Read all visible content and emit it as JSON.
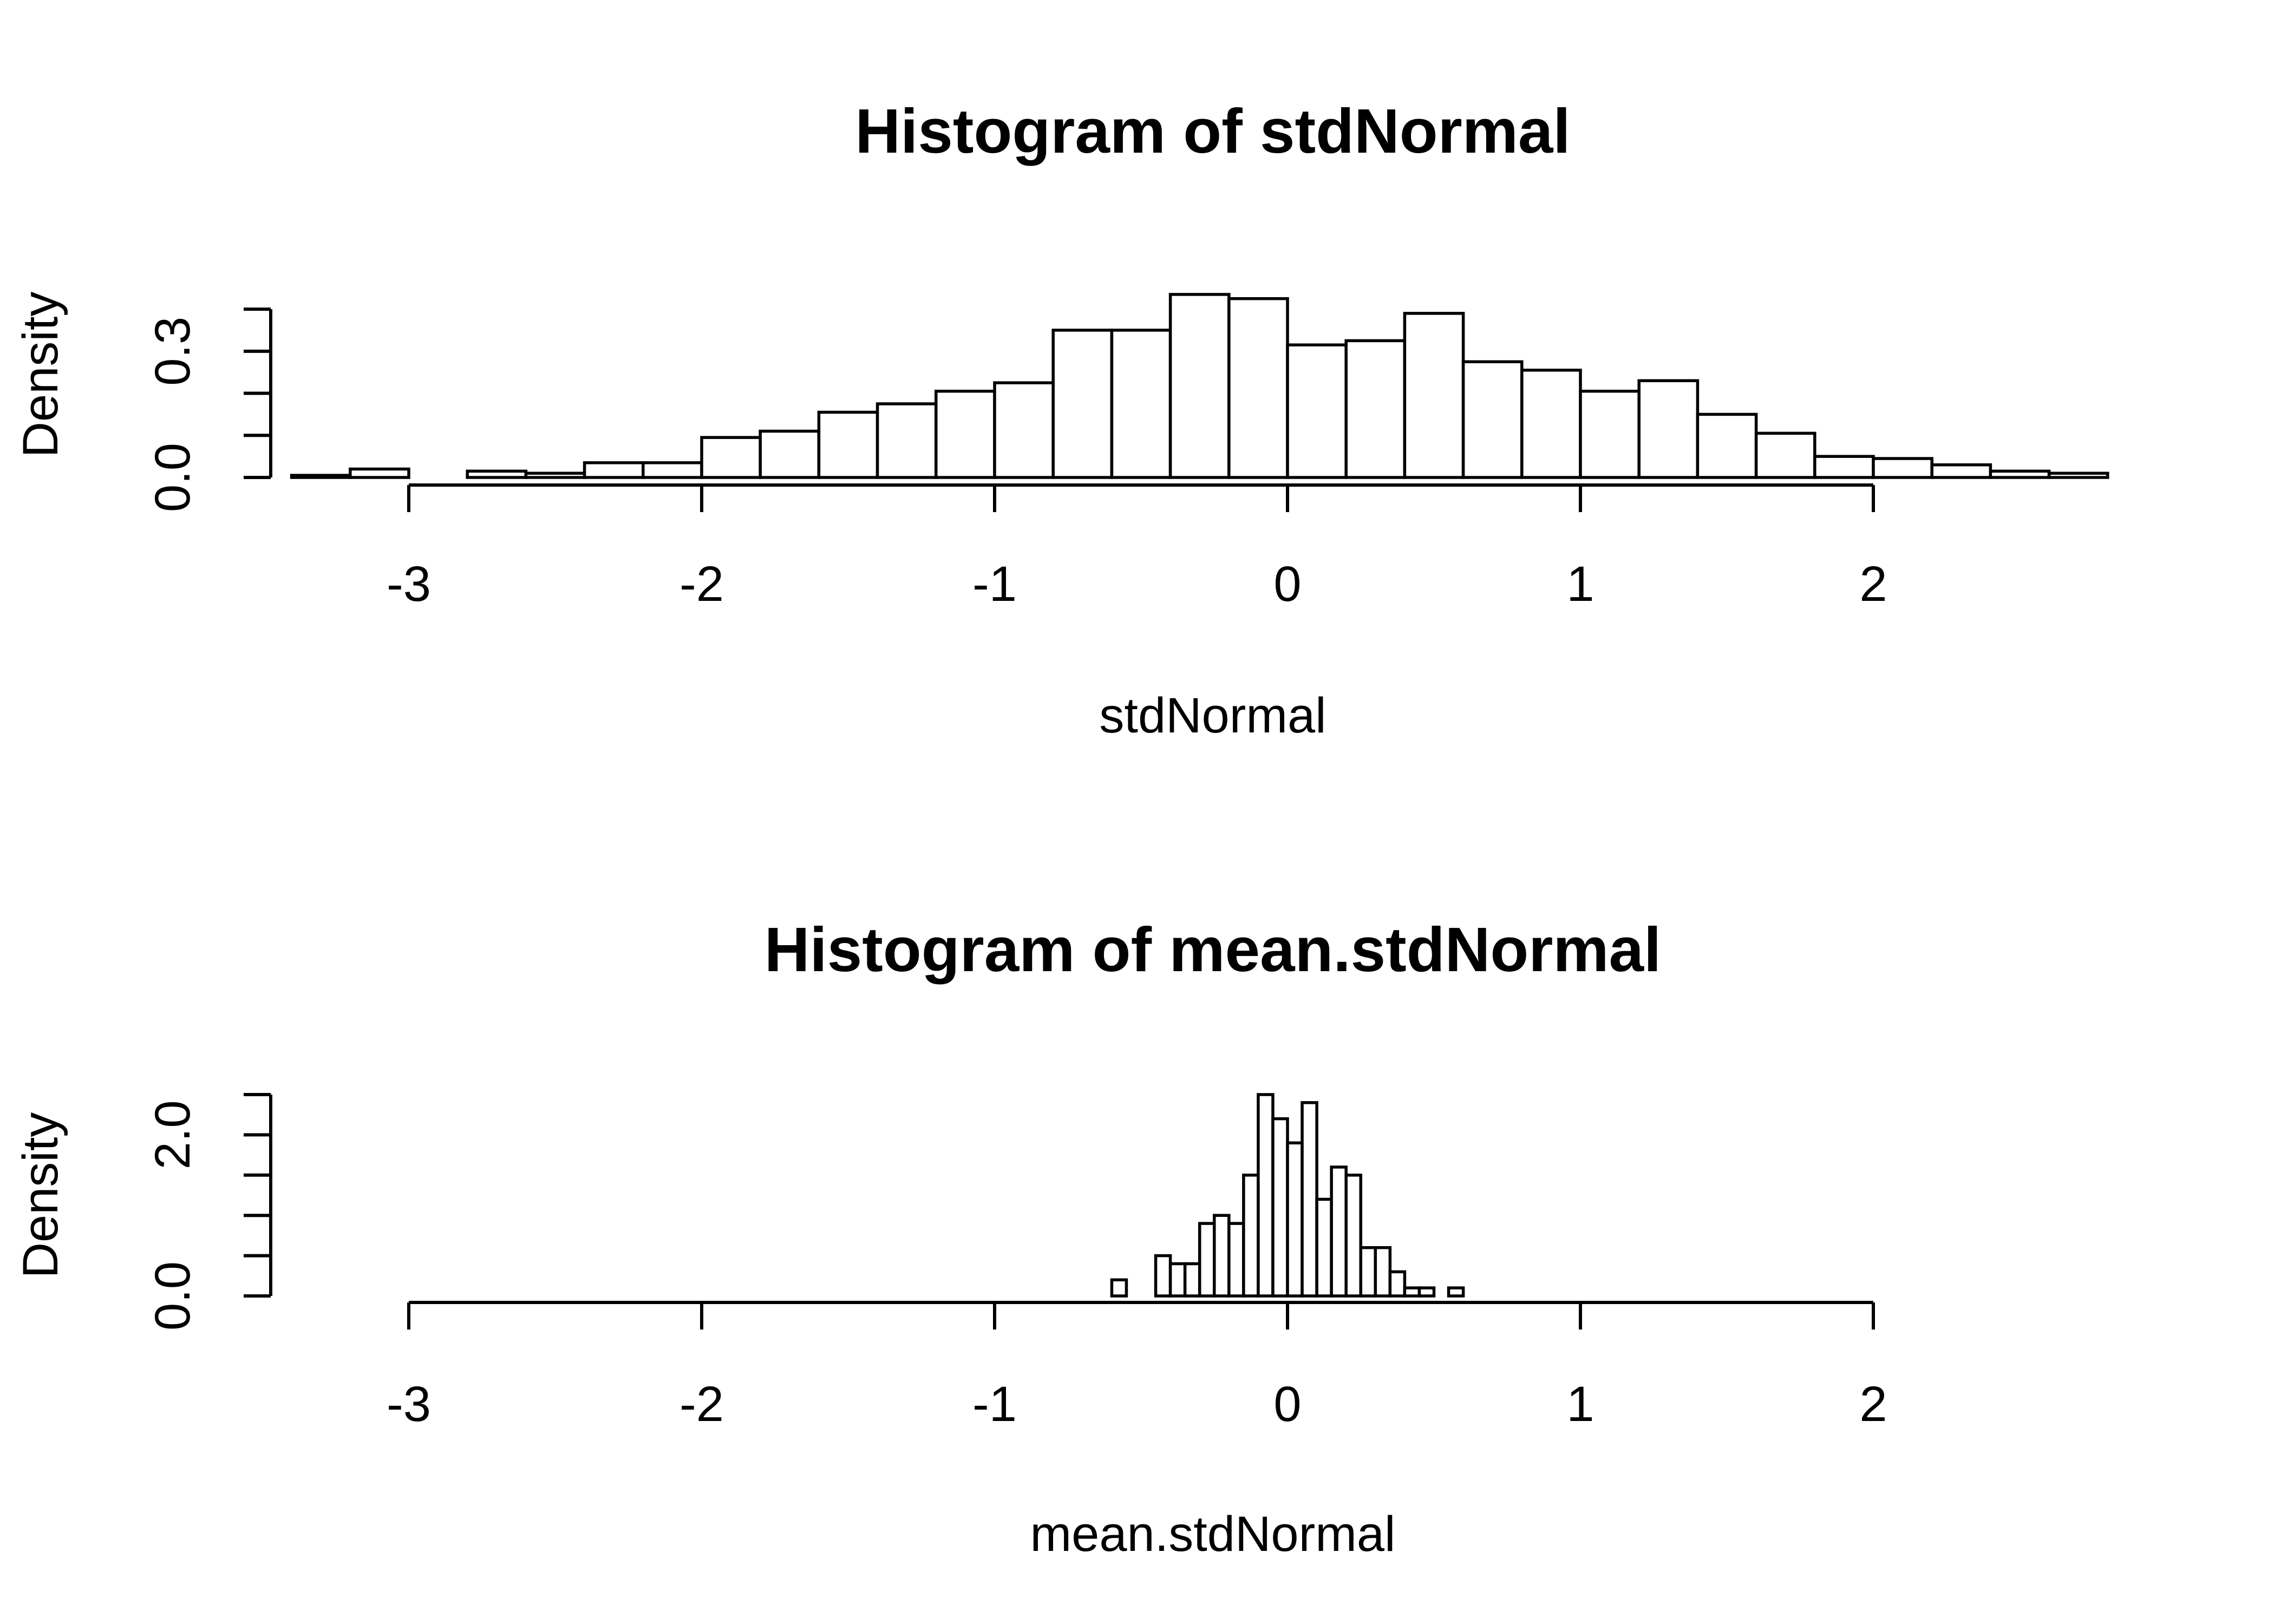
{
  "chart_data": [
    {
      "type": "histogram",
      "title": "Histogram of stdNormal",
      "xlabel": "stdNormal",
      "ylabel": "Density",
      "xlim": [
        -3.4,
        2.8
      ],
      "ylim": [
        0,
        0.44
      ],
      "x_ticks": [
        -3,
        -2,
        -1,
        0,
        1,
        2
      ],
      "x_tick_labels": [
        "-3",
        "-2",
        "-1",
        "0",
        "1",
        "2"
      ],
      "y_ticks": [
        0.0,
        0.1,
        0.2,
        0.3,
        0.4
      ],
      "y_tick_labels": [
        {
          "value": 0.0,
          "label": "0.0"
        },
        {
          "value": 0.3,
          "label": "0.3"
        }
      ],
      "grid": false,
      "bin_width": 0.2,
      "bin_edges": [
        -3.4,
        -3.2,
        -3.0,
        -2.8,
        -2.6,
        -2.4,
        -2.2,
        -2.0,
        -1.8,
        -1.6,
        -1.4,
        -1.2,
        -1.0,
        -0.8,
        -0.6,
        -0.4,
        -0.2,
        0.0,
        0.2,
        0.4,
        0.6,
        0.8,
        1.0,
        1.2,
        1.4,
        1.6,
        1.8,
        2.0,
        2.2,
        2.4,
        2.6,
        2.8
      ],
      "densities": [
        0.005,
        0.02,
        0.0,
        0.015,
        0.01,
        0.035,
        0.035,
        0.095,
        0.11,
        0.155,
        0.175,
        0.205,
        0.225,
        0.35,
        0.35,
        0.435,
        0.425,
        0.315,
        0.325,
        0.39,
        0.275,
        0.255,
        0.205,
        0.23,
        0.15,
        0.105,
        0.05,
        0.045,
        0.03,
        0.015,
        0.01
      ]
    },
    {
      "type": "histogram",
      "title": "Histogram of mean.stdNormal",
      "xlabel": "mean.stdNormal",
      "ylabel": "Density",
      "xlim": [
        -3.4,
        2.8
      ],
      "ylim": [
        0,
        2.5
      ],
      "x_ticks": [
        -3,
        -2,
        -1,
        0,
        1,
        2
      ],
      "x_tick_labels": [
        "-3",
        "-2",
        "-1",
        "0",
        "1",
        "2"
      ],
      "y_ticks": [
        0.0,
        0.5,
        1.0,
        1.5,
        2.0,
        2.5
      ],
      "y_tick_labels": [
        {
          "value": 0.0,
          "label": "0.0"
        },
        {
          "value": 2.0,
          "label": "2.0"
        }
      ],
      "grid": false,
      "bin_width": 0.05,
      "bin_edges": [
        -0.6,
        -0.55,
        -0.5,
        -0.45,
        -0.4,
        -0.35,
        -0.3,
        -0.25,
        -0.2,
        -0.15,
        -0.1,
        -0.05,
        0.0,
        0.05,
        0.1,
        0.15,
        0.2,
        0.25,
        0.3,
        0.35,
        0.4,
        0.45,
        0.5,
        0.55,
        0.6
      ],
      "densities": [
        0.2,
        0.0,
        0.0,
        0.5,
        0.4,
        0.4,
        0.9,
        1.0,
        0.9,
        1.5,
        2.5,
        2.2,
        1.9,
        2.4,
        1.2,
        1.6,
        1.5,
        0.6,
        0.6,
        0.3,
        0.1,
        0.1,
        0.0,
        0.1
      ]
    }
  ]
}
